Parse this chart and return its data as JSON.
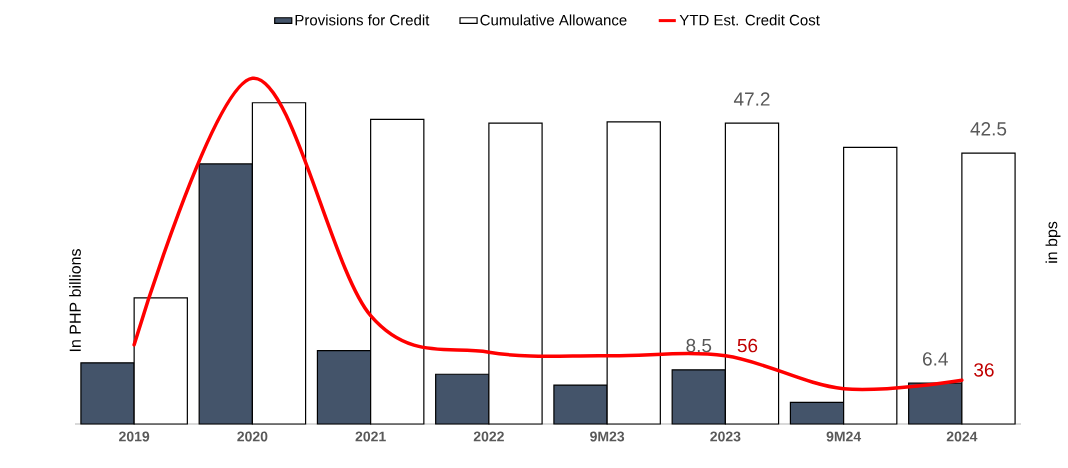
{
  "chart_data": {
    "type": "bar",
    "ylabel": "In PHP billions",
    "y2label": "in bps",
    "categories": [
      "2019",
      "2020",
      "2021",
      "2022",
      "9M23",
      "2023",
      "9M24",
      "2024"
    ],
    "series": [
      {
        "name": "Provisions for Credit",
        "color": "#44546a",
        "values": [
          9.6,
          40.8,
          11.5,
          7.8,
          6.1,
          8.5,
          3.4,
          6.4
        ],
        "value_labels": [
          null,
          null,
          null,
          null,
          null,
          "8.5",
          null,
          "6.4"
        ]
      },
      {
        "name": "Cumulative Allowance",
        "color": "#ffffff",
        "values": [
          19.8,
          50.4,
          47.8,
          47.2,
          47.4,
          47.2,
          43.4,
          42.5
        ],
        "value_labels": [
          null,
          null,
          null,
          null,
          null,
          "47.2",
          null,
          "42.5"
        ]
      },
      {
        "name": "YTD Est. Credit Cost",
        "type": "line",
        "axis": "y2",
        "color": "#ff0000",
        "values": [
          65,
          284,
          89,
          59,
          56,
          56,
          29,
          36
        ],
        "value_labels": [
          null,
          null,
          null,
          null,
          null,
          "56",
          null,
          "36"
        ]
      }
    ],
    "legend": "top"
  }
}
